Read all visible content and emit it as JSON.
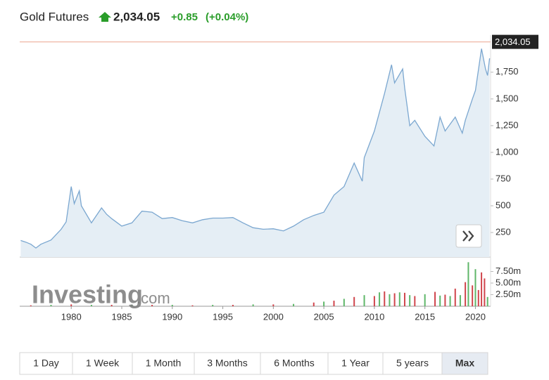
{
  "header": {
    "title": "Gold Futures",
    "price": "2,034.05",
    "change": "+0.85",
    "change_pct": "(+0.04%)"
  },
  "watermark": {
    "main": "Investing",
    "suffix": ".com"
  },
  "range_buttons": {
    "labels": [
      "1 Day",
      "1 Week",
      "1 Month",
      "3 Months",
      "6 Months",
      "1 Year",
      "5 years",
      "Max"
    ],
    "selected": 7
  },
  "chart_data": {
    "type": "line",
    "x": [
      1975,
      1975.5,
      1976,
      1976.5,
      1977,
      1978,
      1979,
      1979.5,
      1980,
      1980.3,
      1980.8,
      1981,
      1982,
      1983,
      1983.5,
      1984,
      1985,
      1986,
      1987,
      1988,
      1989,
      1990,
      1991,
      1992,
      1993,
      1994,
      1995,
      1996,
      1997,
      1998,
      1999,
      2000,
      2001,
      2002,
      2003,
      2004,
      2005,
      2006,
      2007,
      2008,
      2008.8,
      2009,
      2010,
      2011,
      2011.7,
      2012,
      2012.8,
      2013,
      2013.5,
      2014,
      2015,
      2015.9,
      2016.5,
      2017,
      2018,
      2018.7,
      2019,
      2019.7,
      2020,
      2020.6,
      2021,
      2021.2,
      2021.4
    ],
    "values": [
      175,
      160,
      140,
      105,
      140,
      180,
      280,
      350,
      680,
      520,
      640,
      500,
      340,
      480,
      420,
      380,
      310,
      340,
      450,
      440,
      380,
      390,
      360,
      340,
      370,
      385,
      385,
      390,
      340,
      295,
      280,
      285,
      265,
      310,
      370,
      410,
      440,
      600,
      680,
      900,
      730,
      950,
      1200,
      1550,
      1820,
      1650,
      1780,
      1600,
      1250,
      1300,
      1150,
      1060,
      1330,
      1200,
      1330,
      1180,
      1300,
      1500,
      1580,
      1970,
      1780,
      1720,
      1880
    ],
    "color": "#7ba7d0",
    "fill": "#e5eef5",
    "xlim": [
      1974.9,
      2021.5
    ],
    "xticks": [
      1980,
      1985,
      1990,
      1995,
      2000,
      2005,
      2010,
      2015,
      2020
    ],
    "ylim": [
      20,
      2130
    ],
    "yticks": [
      {
        "value": 250,
        "label": "250"
      },
      {
        "value": 500,
        "label": "500"
      },
      {
        "value": 750,
        "label": "750"
      },
      {
        "value": 1000,
        "label": "1,000"
      },
      {
        "value": 1250,
        "label": "1,250"
      },
      {
        "value": 1500,
        "label": "1,500"
      },
      {
        "value": 1750,
        "label": "1,750"
      }
    ],
    "price_line": {
      "value": 2034.05,
      "label": "2,034.05"
    },
    "volume": {
      "x": [
        1976,
        1978,
        1980,
        1982,
        1984,
        1986,
        1988,
        1990,
        1992,
        1994,
        1996,
        1998,
        2000,
        2002,
        2004,
        2005,
        2006,
        2007,
        2008,
        2009,
        2010,
        2010.5,
        2011,
        2011.5,
        2012,
        2012.5,
        2013,
        2013.5,
        2014,
        2015,
        2016,
        2016.5,
        2017,
        2017.5,
        2018,
        2018.5,
        2019,
        2019.3,
        2019.7,
        2020,
        2020.3,
        2020.6,
        2020.9,
        2021.2
      ],
      "values": [
        0.2,
        0.3,
        0.4,
        0.3,
        0.3,
        0.3,
        0.3,
        0.3,
        0.2,
        0.3,
        0.3,
        0.4,
        0.4,
        0.5,
        0.8,
        1.0,
        1.2,
        1.6,
        2.0,
        2.4,
        2.2,
        3.0,
        3.2,
        2.6,
        2.8,
        3.0,
        2.9,
        2.4,
        2.2,
        2.6,
        3.1,
        2.3,
        2.5,
        2.2,
        3.8,
        2.4,
        5.2,
        9.5,
        4.5,
        8.0,
        3.5,
        7.3,
        6.0,
        2.0
      ],
      "colors": [
        "#d0454c",
        "#5fb769",
        "#d0454c",
        "#5fb769",
        "#d0454c",
        "#5fb769",
        "#d0454c",
        "#5fb769",
        "#d0454c",
        "#5fb769",
        "#d0454c",
        "#5fb769",
        "#d0454c",
        "#5fb769",
        "#d0454c",
        "#5fb769",
        "#d0454c",
        "#5fb769",
        "#d0454c",
        "#5fb769",
        "#d0454c",
        "#5fb769",
        "#d0454c",
        "#5fb769",
        "#d0454c",
        "#5fb769",
        "#d0454c",
        "#5fb769",
        "#d0454c",
        "#5fb769",
        "#d0454c",
        "#5fb769",
        "#d0454c",
        "#5fb769",
        "#d0454c",
        "#5fb769",
        "#d0454c",
        "#5fb769",
        "#d0454c",
        "#5fb769",
        "#d0454c",
        "#d0454c",
        "#d0454c",
        "#5fb769"
      ],
      "ylim": [
        0,
        10
      ],
      "yticks": [
        {
          "value": 2.5,
          "label": "2.50m"
        },
        {
          "value": 5,
          "label": "5.00m"
        },
        {
          "value": 7.5,
          "label": "7.50m"
        }
      ]
    }
  }
}
